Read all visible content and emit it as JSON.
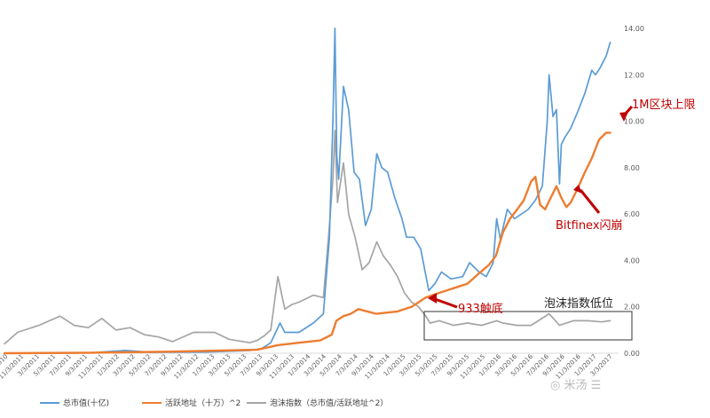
{
  "chart_data": {
    "type": "line",
    "title": "",
    "xlabel": "",
    "ylabel": "",
    "ylim": [
      0,
      14
    ],
    "y_ticks": [
      "0.00",
      "2.00",
      "4.00",
      "6.00",
      "8.00",
      "10.00",
      "12.00",
      "14.00"
    ],
    "x_range": [
      "2010-01-03",
      "2017-04-15"
    ],
    "x_ticks": [
      "1/3/2010",
      "11/3/2011",
      "3/3/2011",
      "5/3/2011",
      "7/3/2011",
      "9/3/2011",
      "11/3/2011",
      "1/3/2012",
      "3/3/2012",
      "5/3/2012",
      "7/3/2012",
      "9/3/2012",
      "11/3/2012",
      "1/3/2013",
      "3/3/2013",
      "5/3/2013",
      "7/3/2013",
      "9/3/2013",
      "11/3/2013",
      "1/3/2014",
      "3/3/2014",
      "5/3/2014",
      "7/3/2014",
      "9/3/2014",
      "11/3/2014",
      "1/3/2015",
      "3/3/2015",
      "5/3/2015",
      "7/3/2015",
      "9/3/2015",
      "11/3/2015",
      "1/3/2016",
      "3/3/2016",
      "5/3/2016",
      "7/3/2016",
      "9/3/2016",
      "11/3/2016",
      "1/3/2017",
      "3/3/2017"
    ],
    "grid": false,
    "legend_position": "bottom",
    "series": [
      {
        "name": "总市值(十亿)",
        "color": "#5b9bd5",
        "points": [
          [
            "2010-01-03",
            0.0
          ],
          [
            "2010-07-01",
            0.0
          ],
          [
            "2011-01-01",
            0.01
          ],
          [
            "2011-06-10",
            0.12
          ],
          [
            "2011-10-01",
            0.04
          ],
          [
            "2012-06-01",
            0.05
          ],
          [
            "2012-12-01",
            0.12
          ],
          [
            "2013-01-20",
            0.2
          ],
          [
            "2013-03-01",
            0.45
          ],
          [
            "2013-04-10",
            1.3
          ],
          [
            "2013-05-01",
            0.9
          ],
          [
            "2013-07-01",
            0.9
          ],
          [
            "2013-09-01",
            1.3
          ],
          [
            "2013-10-15",
            1.7
          ],
          [
            "2013-11-10",
            5.0
          ],
          [
            "2013-11-25",
            10.0
          ],
          [
            "2013-12-04",
            14.0
          ],
          [
            "2013-12-12",
            8.5
          ],
          [
            "2013-12-20",
            7.5
          ],
          [
            "2014-01-10",
            11.5
          ],
          [
            "2014-02-01",
            10.5
          ],
          [
            "2014-02-25",
            7.8
          ],
          [
            "2014-03-20",
            7.5
          ],
          [
            "2014-04-15",
            5.5
          ],
          [
            "2014-05-10",
            6.2
          ],
          [
            "2014-06-03",
            8.6
          ],
          [
            "2014-06-25",
            8.0
          ],
          [
            "2014-07-20",
            7.8
          ],
          [
            "2014-08-20",
            6.7
          ],
          [
            "2014-09-20",
            5.8
          ],
          [
            "2014-10-10",
            5.0
          ],
          [
            "2014-11-10",
            5.0
          ],
          [
            "2014-12-10",
            4.5
          ],
          [
            "2015-01-14",
            2.7
          ],
          [
            "2015-02-10",
            3.0
          ],
          [
            "2015-03-10",
            3.5
          ],
          [
            "2015-04-20",
            3.2
          ],
          [
            "2015-06-10",
            3.3
          ],
          [
            "2015-07-10",
            3.9
          ],
          [
            "2015-08-20",
            3.5
          ],
          [
            "2015-09-20",
            3.3
          ],
          [
            "2015-10-20",
            3.9
          ],
          [
            "2015-11-04",
            5.8
          ],
          [
            "2015-11-20",
            4.9
          ],
          [
            "2015-12-20",
            6.2
          ],
          [
            "2016-01-20",
            5.8
          ],
          [
            "2016-02-20",
            6.0
          ],
          [
            "2016-03-20",
            6.2
          ],
          [
            "2016-04-20",
            6.6
          ],
          [
            "2016-05-20",
            7.2
          ],
          [
            "2016-06-10",
            10.0
          ],
          [
            "2016-06-18",
            12.0
          ],
          [
            "2016-07-05",
            10.2
          ],
          [
            "2016-07-20",
            10.5
          ],
          [
            "2016-08-02",
            7.3
          ],
          [
            "2016-08-10",
            9.0
          ],
          [
            "2016-08-25",
            9.3
          ],
          [
            "2016-09-20",
            9.7
          ],
          [
            "2016-10-20",
            10.4
          ],
          [
            "2016-11-20",
            11.2
          ],
          [
            "2016-12-20",
            12.2
          ],
          [
            "2017-01-05",
            12.0
          ],
          [
            "2017-01-25",
            12.3
          ],
          [
            "2017-02-20",
            12.8
          ],
          [
            "2017-03-10",
            13.4
          ]
        ]
      },
      {
        "name": "活跃地址（十万）^2",
        "color": "#ed7d31",
        "points": [
          [
            "2010-01-03",
            0.0
          ],
          [
            "2011-01-01",
            0.02
          ],
          [
            "2012-01-01",
            0.07
          ],
          [
            "2013-01-01",
            0.15
          ],
          [
            "2013-04-01",
            0.35
          ],
          [
            "2013-07-01",
            0.45
          ],
          [
            "2013-10-01",
            0.55
          ],
          [
            "2013-11-20",
            0.8
          ],
          [
            "2013-12-10",
            1.4
          ],
          [
            "2014-01-10",
            1.6
          ],
          [
            "2014-02-10",
            1.7
          ],
          [
            "2014-03-15",
            1.9
          ],
          [
            "2014-06-01",
            1.7
          ],
          [
            "2014-09-01",
            1.8
          ],
          [
            "2014-11-01",
            2.0
          ],
          [
            "2015-01-01",
            2.4
          ],
          [
            "2015-03-01",
            2.6
          ],
          [
            "2015-05-01",
            2.8
          ],
          [
            "2015-07-01",
            3.0
          ],
          [
            "2015-08-15",
            3.4
          ],
          [
            "2015-10-01",
            3.8
          ],
          [
            "2015-11-01",
            4.2
          ],
          [
            "2015-12-01",
            5.2
          ],
          [
            "2016-01-01",
            5.8
          ],
          [
            "2016-02-01",
            6.2
          ],
          [
            "2016-03-01",
            6.6
          ],
          [
            "2016-04-01",
            7.4
          ],
          [
            "2016-04-20",
            7.6
          ],
          [
            "2016-05-10",
            6.4
          ],
          [
            "2016-06-01",
            6.2
          ],
          [
            "2016-06-20",
            6.6
          ],
          [
            "2016-07-20",
            7.2
          ],
          [
            "2016-08-10",
            6.7
          ],
          [
            "2016-09-01",
            6.3
          ],
          [
            "2016-09-20",
            6.5
          ],
          [
            "2016-10-20",
            7.1
          ],
          [
            "2016-11-20",
            7.8
          ],
          [
            "2016-12-20",
            8.4
          ],
          [
            "2017-01-20",
            9.2
          ],
          [
            "2017-02-20",
            9.5
          ],
          [
            "2017-03-10",
            9.5
          ]
        ]
      },
      {
        "name": "泡沫指数（总市值/活跃地址^2）",
        "color": "#a5a5a5",
        "points": [
          [
            "2010-01-03",
            0.4
          ],
          [
            "2010-03-01",
            0.9
          ],
          [
            "2010-06-01",
            1.2
          ],
          [
            "2010-09-01",
            1.6
          ],
          [
            "2010-11-01",
            1.2
          ],
          [
            "2011-01-01",
            1.1
          ],
          [
            "2011-03-01",
            1.5
          ],
          [
            "2011-05-01",
            1.0
          ],
          [
            "2011-07-01",
            1.1
          ],
          [
            "2011-09-01",
            0.8
          ],
          [
            "2011-11-01",
            0.7
          ],
          [
            "2012-01-01",
            0.5
          ],
          [
            "2012-04-01",
            0.9
          ],
          [
            "2012-07-01",
            0.9
          ],
          [
            "2012-09-01",
            0.6
          ],
          [
            "2012-12-01",
            0.45
          ],
          [
            "2013-01-01",
            0.55
          ],
          [
            "2013-02-01",
            0.75
          ],
          [
            "2013-03-01",
            1.0
          ],
          [
            "2013-04-01",
            3.3
          ],
          [
            "2013-05-01",
            1.9
          ],
          [
            "2013-06-01",
            2.1
          ],
          [
            "2013-07-01",
            2.2
          ],
          [
            "2013-09-01",
            2.5
          ],
          [
            "2013-10-15",
            2.4
          ],
          [
            "2013-11-10",
            5.5
          ],
          [
            "2013-11-25",
            7.5
          ],
          [
            "2013-12-04",
            9.6
          ],
          [
            "2013-12-15",
            6.5
          ],
          [
            "2014-01-10",
            8.2
          ],
          [
            "2014-02-01",
            6.0
          ],
          [
            "2014-03-01",
            5.0
          ],
          [
            "2014-04-01",
            3.6
          ],
          [
            "2014-05-01",
            3.9
          ],
          [
            "2014-06-03",
            4.8
          ],
          [
            "2014-07-01",
            4.2
          ],
          [
            "2014-08-01",
            3.8
          ],
          [
            "2014-09-01",
            3.3
          ],
          [
            "2014-10-01",
            2.6
          ],
          [
            "2014-11-01",
            2.2
          ],
          [
            "2014-12-01",
            2.0
          ],
          [
            "2015-01-01",
            1.6
          ],
          [
            "2015-01-20",
            1.3
          ],
          [
            "2015-03-01",
            1.4
          ],
          [
            "2015-05-01",
            1.2
          ],
          [
            "2015-07-01",
            1.3
          ],
          [
            "2015-09-01",
            1.2
          ],
          [
            "2015-11-04",
            1.4
          ],
          [
            "2015-12-01",
            1.3
          ],
          [
            "2016-02-01",
            1.2
          ],
          [
            "2016-04-01",
            1.2
          ],
          [
            "2016-06-18",
            1.7
          ],
          [
            "2016-08-02",
            1.2
          ],
          [
            "2016-10-01",
            1.4
          ],
          [
            "2016-12-01",
            1.4
          ],
          [
            "2017-02-01",
            1.35
          ],
          [
            "2017-03-10",
            1.4
          ]
        ]
      }
    ],
    "annotations": [
      {
        "text": "1M区块上限",
        "color": "#c00000"
      },
      {
        "text": "Bitfinex闪崩",
        "color": "#c00000"
      },
      {
        "text": "933触底",
        "color": "#c00000"
      },
      {
        "text": "泡沫指数低位",
        "color": "#222222"
      }
    ]
  },
  "watermark": "◎ 米汤 ☰"
}
